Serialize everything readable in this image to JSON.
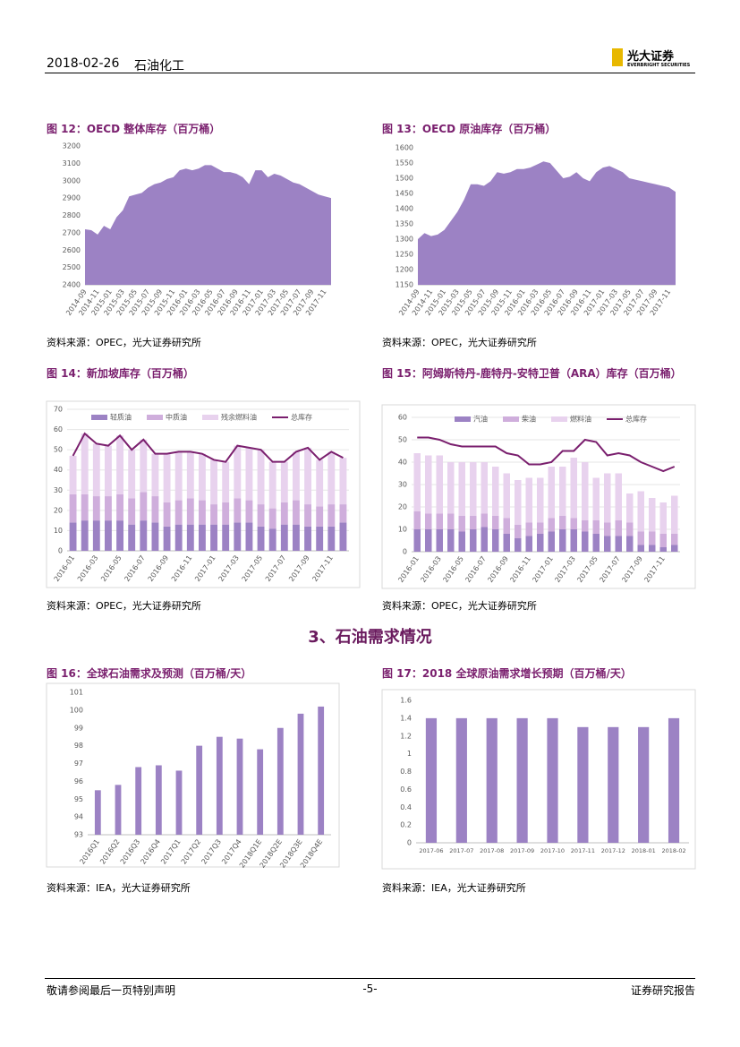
{
  "header": {
    "date": "2018-02-26",
    "sector": "石油化工",
    "logo": "光大证券",
    "logo_en": "EVERBRIGHT SECURITIES"
  },
  "section_title": "3、石油需求情况",
  "footer": {
    "left": "敬请参阅最后一页特别声明",
    "page": "-5-",
    "right": "证券研究报告"
  },
  "chart_data": [
    {
      "type": "area",
      "title": "图 12：OECD 整体库存（百万桶）",
      "source": "资料来源：OPEC，光大证券研究所",
      "color": "#9c82c4",
      "categories": [
        "2014-09",
        null,
        "2014-11",
        null,
        "2015-01",
        null,
        "2015-03",
        null,
        "2015-05",
        null,
        "2015-07",
        null,
        "2015-09",
        null,
        "2015-11",
        null,
        "2016-01",
        null,
        "2016-03",
        null,
        "2016-05",
        null,
        "2016-07",
        null,
        "2016-09",
        null,
        "2016-11",
        null,
        "2017-01",
        null,
        "2017-03",
        null,
        "2017-05",
        null,
        "2017-07",
        null,
        "2017-09",
        null,
        "2017-11",
        null
      ],
      "values": [
        2720,
        2715,
        2690,
        2740,
        2720,
        2790,
        2830,
        2910,
        2920,
        2930,
        2960,
        2980,
        2990,
        3010,
        3020,
        3060,
        3070,
        3060,
        3070,
        3090,
        3090,
        3070,
        3050,
        3050,
        3040,
        3020,
        2980,
        3060,
        3060,
        3020,
        3040,
        3030,
        3010,
        2990,
        2980,
        2960,
        2940,
        2920,
        2910,
        2900
      ],
      "ylim": [
        2400,
        3200
      ],
      "yticks": [
        2400,
        2500,
        2600,
        2700,
        2800,
        2900,
        3000,
        3100,
        3200
      ]
    },
    {
      "type": "area",
      "title": "图 13：OECD 原油库存（百万桶）",
      "source": "资料来源：OPEC，光大证券研究所",
      "color": "#9c82c4",
      "categories": [
        "2014-09",
        null,
        "2014-11",
        null,
        "2015-01",
        null,
        "2015-03",
        null,
        "2015-05",
        null,
        "2015-07",
        null,
        "2015-09",
        null,
        "2015-11",
        null,
        "2016-01",
        null,
        "2016-03",
        null,
        "2016-05",
        null,
        "2016-07",
        null,
        "2016-09",
        null,
        "2016-11",
        null,
        "2017-01",
        null,
        "2017-03",
        null,
        "2017-05",
        null,
        "2017-07",
        null,
        "2017-09",
        null,
        "2017-11",
        null
      ],
      "values": [
        1300,
        1320,
        1310,
        1315,
        1330,
        1360,
        1390,
        1430,
        1480,
        1480,
        1475,
        1490,
        1520,
        1515,
        1520,
        1530,
        1530,
        1535,
        1545,
        1555,
        1550,
        1525,
        1500,
        1505,
        1520,
        1500,
        1490,
        1520,
        1535,
        1540,
        1530,
        1520,
        1500,
        1495,
        1490,
        1485,
        1480,
        1475,
        1470,
        1455
      ],
      "ylim": [
        1150,
        1600
      ],
      "yticks": [
        1150,
        1200,
        1250,
        1300,
        1350,
        1400,
        1450,
        1500,
        1550,
        1600
      ]
    },
    {
      "type": "bar",
      "stacked": true,
      "title": "图 14：新加坡库存（百万桶）",
      "source": "资料来源：OPEC，光大证券研究所",
      "categories": [
        "2016-01",
        null,
        "2016-03",
        null,
        "2016-05",
        null,
        "2016-07",
        null,
        "2016-09",
        null,
        "2016-11",
        null,
        "2017-01",
        null,
        "2017-03",
        null,
        "2017-05",
        null,
        "2017-07",
        null,
        "2017-09",
        null,
        "2017-11",
        null
      ],
      "series": [
        {
          "name": "轻质油",
          "color": "#9c82c4",
          "values": [
            14,
            15,
            15,
            15,
            15,
            13,
            15,
            14,
            12,
            13,
            13,
            13,
            13,
            13,
            14,
            14,
            12,
            11,
            13,
            13,
            12,
            12,
            12,
            14
          ]
        },
        {
          "name": "中质油",
          "color": "#cfaedc",
          "values": [
            14,
            13,
            12,
            12,
            13,
            13,
            14,
            13,
            12,
            12,
            13,
            12,
            10,
            11,
            12,
            11,
            11,
            10,
            11,
            12,
            11,
            10,
            11,
            9
          ]
        },
        {
          "name": "残余燃料油",
          "color": "#e8d2ee",
          "values": [
            19,
            30,
            26,
            25,
            29,
            24,
            26,
            21,
            24,
            24,
            23,
            23,
            22,
            20,
            26,
            26,
            27,
            23,
            20,
            24,
            28,
            23,
            26,
            23
          ]
        },
        {
          "name": "总库存",
          "color": "#7a1f6e",
          "type": "line",
          "values": [
            47,
            58,
            53,
            52,
            57,
            50,
            55,
            48,
            48,
            49,
            49,
            48,
            45,
            44,
            52,
            51,
            50,
            44,
            44,
            49,
            51,
            45,
            49,
            46
          ]
        }
      ],
      "ylim": [
        0,
        70
      ],
      "yticks": [
        0,
        10,
        20,
        30,
        40,
        50,
        60,
        70
      ],
      "grid": true
    },
    {
      "type": "bar",
      "stacked": true,
      "title": "图 15：阿姆斯特丹-鹿特丹-安特卫普（ARA）库存（百万桶）",
      "source": "资料来源：OPEC，光大证券研究所",
      "categories": [
        "2016-01",
        null,
        "2016-03",
        null,
        "2016-05",
        null,
        "2016-07",
        null,
        "2016-09",
        null,
        "2016-11",
        null,
        "2017-01",
        null,
        "2017-03",
        null,
        "2017-05",
        null,
        "2017-07",
        null,
        "2017-09",
        null,
        "2017-11",
        null
      ],
      "series": [
        {
          "name": "汽油",
          "color": "#9c82c4",
          "values": [
            10,
            10,
            10,
            10,
            9,
            10,
            11,
            10,
            8,
            6,
            7,
            8,
            9,
            10,
            10,
            9,
            8,
            7,
            7,
            7,
            3,
            3,
            2,
            3
          ]
        },
        {
          "name": "柴油",
          "color": "#cfaedc",
          "values": [
            8,
            7,
            7,
            7,
            7,
            6,
            6,
            6,
            7,
            6,
            6,
            5,
            6,
            6,
            5,
            5,
            6,
            6,
            7,
            6,
            6,
            6,
            6,
            5
          ]
        },
        {
          "name": "燃料油",
          "color": "#e8d2ee",
          "values": [
            26,
            26,
            26,
            23,
            24,
            24,
            23,
            22,
            20,
            20,
            20,
            20,
            23,
            22,
            27,
            26,
            19,
            22,
            21,
            13,
            18,
            15,
            14,
            17
          ]
        },
        {
          "name": "总库存",
          "color": "#7a1f6e",
          "type": "line",
          "values": [
            51,
            51,
            50,
            48,
            47,
            47,
            47,
            47,
            44,
            43,
            39,
            39,
            40,
            45,
            45,
            50,
            49,
            43,
            44,
            43,
            40,
            38,
            36,
            38
          ]
        }
      ],
      "ylim": [
        0,
        60
      ],
      "yticks": [
        0,
        10,
        20,
        30,
        40,
        50,
        60
      ],
      "grid": true
    },
    {
      "type": "bar",
      "title": "图 16：全球石油需求及预测（百万桶/天）",
      "source": "资料来源：IEA，光大证券研究所",
      "color": "#9c82c4",
      "categories": [
        "2016Q1",
        "2016Q2",
        "2016Q3",
        "2016Q4",
        "2017Q1",
        "2017Q2",
        "2017Q3",
        "2017Q4",
        "2018Q1E",
        "2018Q2E",
        "2018Q3E",
        "2018Q4E"
      ],
      "values": [
        95.5,
        95.8,
        96.8,
        96.9,
        96.6,
        98.0,
        98.5,
        98.4,
        97.8,
        99.0,
        99.8,
        100.2
      ],
      "ylim": [
        93,
        101
      ],
      "yticks": [
        93,
        94,
        95,
        96,
        97,
        98,
        99,
        100,
        101
      ]
    },
    {
      "type": "bar",
      "title": "图 17：2018 全球原油需求增长预期（百万桶/天）",
      "source": "资料来源：IEA，光大证券研究所",
      "color": "#9c82c4",
      "categories": [
        "2017-06",
        "2017-07",
        "2017-08",
        "2017-09",
        "2017-10",
        "2017-11",
        "2017-12",
        "2018-01",
        "2018-02"
      ],
      "values": [
        1.4,
        1.4,
        1.4,
        1.4,
        1.4,
        1.3,
        1.3,
        1.3,
        1.4
      ],
      "ylim": [
        0,
        1.6
      ],
      "yticks": [
        0,
        0.2,
        0.4,
        0.6,
        0.8,
        1,
        1.2,
        1.4,
        1.6
      ]
    }
  ]
}
